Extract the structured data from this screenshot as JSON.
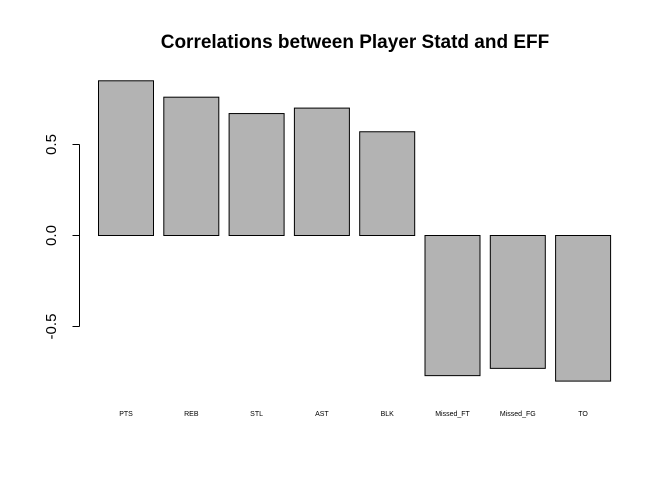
{
  "chart_data": {
    "type": "bar",
    "title": "Correlations between Player Statd and EFF",
    "xlabel": "",
    "ylabel": "",
    "categories": [
      "PTS",
      "REB",
      "STL",
      "AST",
      "BLK",
      "Missed_FT",
      "Missed_FG",
      "TO"
    ],
    "values": [
      0.85,
      0.76,
      0.67,
      0.7,
      0.57,
      -0.77,
      -0.73,
      -0.8
    ],
    "ylim": [
      -0.8,
      0.9
    ],
    "yticks": [
      -0.5,
      0.0,
      0.5
    ],
    "ytick_labels": [
      "-0.5",
      "0.0",
      "0.5"
    ],
    "bar_color": "#b3b3b3",
    "grid": false,
    "legend": "none"
  }
}
